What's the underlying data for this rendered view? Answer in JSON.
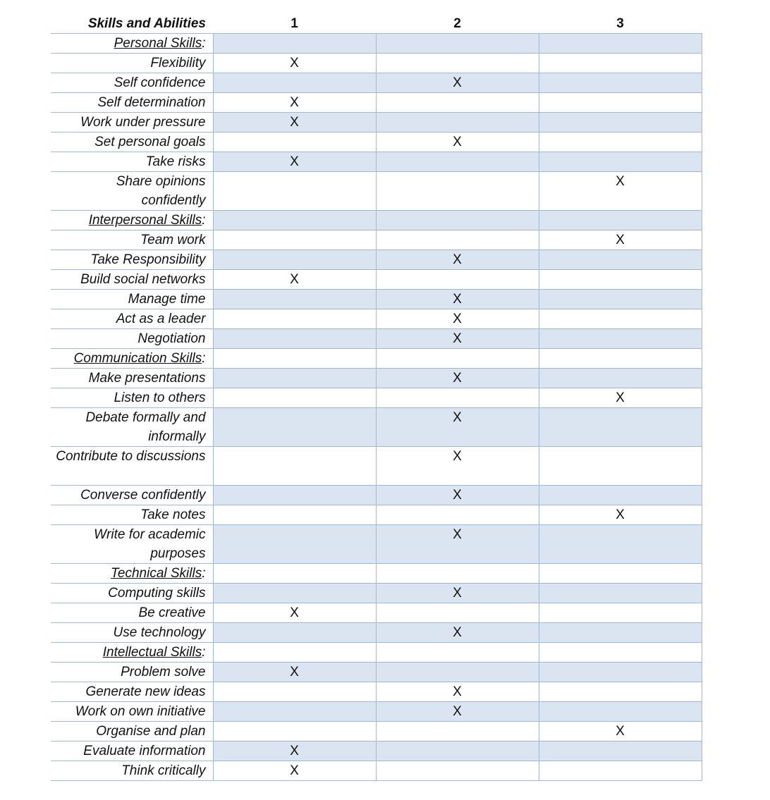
{
  "table": {
    "header": {
      "label": "Skills and Abilities",
      "col1": "1",
      "col2": "2",
      "col3": "3"
    },
    "rows": [
      {
        "label": "Personal Skills",
        "suffix": ":",
        "category": true,
        "c1": "",
        "c2": "",
        "c3": ""
      },
      {
        "label": "Flexibility",
        "c1": "X",
        "c2": "",
        "c3": ""
      },
      {
        "label": "Self confidence",
        "c1": "",
        "c2": "X",
        "c3": ""
      },
      {
        "label": "Self determination",
        "c1": "X",
        "c2": "",
        "c3": ""
      },
      {
        "label": "Work under pressure",
        "c1": "X",
        "c2": "",
        "c3": ""
      },
      {
        "label": "Set personal goals",
        "c1": "",
        "c2": "X",
        "c3": ""
      },
      {
        "label": "Take risks",
        "c1": "X",
        "c2": "",
        "c3": ""
      },
      {
        "label": "Share opinions confidently",
        "tall": true,
        "c1": "",
        "c2": "",
        "c3": "X"
      },
      {
        "label": "Interpersonal Skills",
        "suffix": ":",
        "category": true,
        "c1": "",
        "c2": "",
        "c3": ""
      },
      {
        "label": "Team work",
        "c1": "",
        "c2": "",
        "c3": "X"
      },
      {
        "label": "Take Responsibility",
        "c1": "",
        "c2": "X",
        "c3": ""
      },
      {
        "label": "Build social networks",
        "c1": "X",
        "c2": "",
        "c3": ""
      },
      {
        "label": "Manage time",
        "c1": "",
        "c2": "X",
        "c3": ""
      },
      {
        "label": "Act as a leader",
        "c1": "",
        "c2": "X",
        "c3": ""
      },
      {
        "label": "Negotiation",
        "c1": "",
        "c2": "X",
        "c3": ""
      },
      {
        "label": "Communication Skills",
        "suffix": ":",
        "category": true,
        "c1": "",
        "c2": "",
        "c3": ""
      },
      {
        "label": "Make presentations",
        "c1": "",
        "c2": "X",
        "c3": ""
      },
      {
        "label": "Listen to others",
        "c1": "",
        "c2": "",
        "c3": "X"
      },
      {
        "label": "Debate formally and informally",
        "tall": true,
        "c1": "",
        "c2": "X",
        "c3": ""
      },
      {
        "label": "Contribute to discussions",
        "tall": true,
        "c1": "",
        "c2": "X",
        "c3": ""
      },
      {
        "label": "Converse confidently",
        "c1": "",
        "c2": "X",
        "c3": ""
      },
      {
        "label": "Take notes",
        "c1": "",
        "c2": "",
        "c3": "X"
      },
      {
        "label": "Write for academic purposes",
        "tall": true,
        "c1": "",
        "c2": "X",
        "c3": ""
      },
      {
        "label": "Technical Skills",
        "suffix": ":",
        "category": true,
        "c1": "",
        "c2": "",
        "c3": ""
      },
      {
        "label": "Computing skills",
        "c1": "",
        "c2": "X",
        "c3": ""
      },
      {
        "label": "Be creative",
        "c1": "X",
        "c2": "",
        "c3": ""
      },
      {
        "label": "Use technology",
        "c1": "",
        "c2": "X",
        "c3": ""
      },
      {
        "label": "Intellectual Skills",
        "suffix": ":",
        "category": true,
        "c1": "",
        "c2": "",
        "c3": ""
      },
      {
        "label": "Problem solve",
        "c1": "X",
        "c2": "",
        "c3": ""
      },
      {
        "label": "Generate new ideas",
        "c1": "",
        "c2": "X",
        "c3": ""
      },
      {
        "label": "Work on own initiative",
        "c1": "",
        "c2": "X",
        "c3": ""
      },
      {
        "label": "Organise and plan",
        "c1": "",
        "c2": "",
        "c3": "X"
      },
      {
        "label": "Evaluate information",
        "c1": "X",
        "c2": "",
        "c3": ""
      },
      {
        "label": "Think critically",
        "c1": "X",
        "c2": "",
        "c3": ""
      }
    ]
  }
}
